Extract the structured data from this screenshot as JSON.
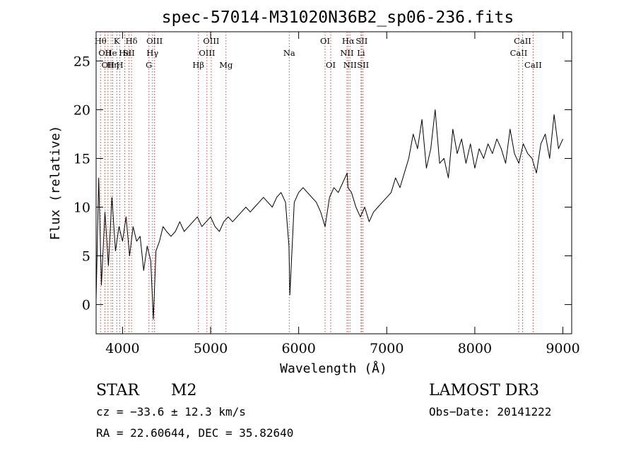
{
  "chart_data": {
    "type": "line",
    "title": "spec-57014-M31020N36B2_sp06-236.fits",
    "xlabel": "Wavelength (Å)",
    "ylabel": "Flux (relative)",
    "xlim": [
      3700,
      9100
    ],
    "ylim": [
      -3,
      28
    ],
    "xticks": [
      4000,
      5000,
      6000,
      7000,
      8000,
      9000
    ],
    "yticks": [
      0,
      5,
      10,
      15,
      20,
      25
    ],
    "grid": false,
    "series": [
      {
        "color": "#000000",
        "x": [
          3700,
          3730,
          3760,
          3800,
          3840,
          3880,
          3920,
          3960,
          4000,
          4040,
          4080,
          4120,
          4160,
          4200,
          4240,
          4280,
          4320,
          4350,
          4380,
          4420,
          4460,
          4500,
          4550,
          4600,
          4650,
          4700,
          4750,
          4800,
          4850,
          4900,
          4950,
          5000,
          5050,
          5100,
          5150,
          5200,
          5250,
          5300,
          5350,
          5400,
          5450,
          5500,
          5550,
          5600,
          5650,
          5700,
          5750,
          5800,
          5850,
          5890,
          5900,
          5950,
          6000,
          6050,
          6100,
          6150,
          6200,
          6250,
          6300,
          6350,
          6400,
          6450,
          6500,
          6550,
          6560,
          6600,
          6650,
          6700,
          6750,
          6800,
          6850,
          6900,
          6950,
          7000,
          7050,
          7100,
          7150,
          7200,
          7250,
          7300,
          7350,
          7400,
          7450,
          7500,
          7550,
          7600,
          7650,
          7700,
          7750,
          7800,
          7850,
          7900,
          7950,
          8000,
          8050,
          8100,
          8150,
          8200,
          8250,
          8300,
          8350,
          8400,
          8450,
          8500,
          8550,
          8600,
          8650,
          8700,
          8750,
          8800,
          8850,
          8900,
          8950,
          9000
        ],
        "y": [
          0.5,
          13.0,
          2.0,
          9.5,
          4.0,
          11.0,
          5.5,
          8.0,
          6.5,
          9.0,
          5.0,
          8.0,
          6.5,
          7.0,
          3.5,
          6.0,
          4.5,
          -1.5,
          5.5,
          6.5,
          8.0,
          7.5,
          7.0,
          7.5,
          8.5,
          7.5,
          8.0,
          8.5,
          9.0,
          8.0,
          8.5,
          9.0,
          8.0,
          7.5,
          8.5,
          9.0,
          8.5,
          9.0,
          9.5,
          10.0,
          9.5,
          10.0,
          10.5,
          11.0,
          10.5,
          10.0,
          11.0,
          11.5,
          10.5,
          6.0,
          1.0,
          10.5,
          11.5,
          12.0,
          11.5,
          11.0,
          10.5,
          9.5,
          8.0,
          11.0,
          12.0,
          11.5,
          12.5,
          13.5,
          12.0,
          11.5,
          10.0,
          9.0,
          10.0,
          8.5,
          9.5,
          10.0,
          10.5,
          11.0,
          11.5,
          13.0,
          12.0,
          13.5,
          15.0,
          17.5,
          16.0,
          19.0,
          14.0,
          16.0,
          20.0,
          14.5,
          15.0,
          13.0,
          18.0,
          15.5,
          17.0,
          14.5,
          16.5,
          14.0,
          16.0,
          15.0,
          16.5,
          15.5,
          17.0,
          16.0,
          14.5,
          18.0,
          15.5,
          14.5,
          16.5,
          15.5,
          15.0,
          13.5,
          16.5,
          17.5,
          15.0,
          19.5,
          16.0,
          17.0
        ]
      }
    ],
    "line_markers": [
      {
        "wave": 3750,
        "row": 1,
        "label": "Hθ"
      },
      {
        "wave": 3800,
        "row": 2,
        "label": "OII"
      },
      {
        "wave": 3835,
        "row": 3,
        "label": "OII"
      },
      {
        "wave": 3869,
        "row": 2,
        "label": "He"
      },
      {
        "wave": 3889,
        "row": 3,
        "label": "Hη"
      },
      {
        "wave": 3934,
        "row": 1,
        "label": "K"
      },
      {
        "wave": 3969,
        "row": 3,
        "label": "H"
      },
      {
        "wave": 4026,
        "row": 2,
        "label": "He"
      },
      {
        "wave": 4072,
        "row": 2,
        "label": "SII"
      },
      {
        "wave": 4102,
        "row": 1,
        "label": "Hδ"
      },
      {
        "wave": 4300,
        "row": 3,
        "label": "G"
      },
      {
        "wave": 4340,
        "row": 2,
        "label": "Hγ"
      },
      {
        "wave": 4363,
        "row": 1,
        "label": "OIII"
      },
      {
        "wave": 4861,
        "row": 3,
        "label": "Hβ"
      },
      {
        "wave": 4959,
        "row": 2,
        "label": "OIII"
      },
      {
        "wave": 5007,
        "row": 1,
        "label": "OIII"
      },
      {
        "wave": 5175,
        "row": 3,
        "label": "Mg"
      },
      {
        "wave": 5893,
        "row": 2,
        "label": "Na"
      },
      {
        "wave": 6300,
        "row": 1,
        "label": "OI"
      },
      {
        "wave": 6364,
        "row": 3,
        "label": "OI"
      },
      {
        "wave": 6548,
        "row": 2,
        "label": "NII"
      },
      {
        "wave": 6563,
        "row": 1,
        "label": "Hα"
      },
      {
        "wave": 6583,
        "row": 3,
        "label": "NII"
      },
      {
        "wave": 6708,
        "row": 2,
        "label": "Li"
      },
      {
        "wave": 6716,
        "row": 1,
        "label": "SII"
      },
      {
        "wave": 6731,
        "row": 3,
        "label": "SII"
      },
      {
        "wave": 8498,
        "row": 2,
        "label": "CaII"
      },
      {
        "wave": 8542,
        "row": 1,
        "label": "CaII"
      },
      {
        "wave": 8662,
        "row": 3,
        "label": "CaII"
      }
    ]
  },
  "info": {
    "object_class": "STAR",
    "subclass": "M2",
    "survey": "LAMOST DR3",
    "redshift": "cz = −33.6 ± 12.3 km/s",
    "obs_date": "Obs−Date: 20141222",
    "coords": "RA =  22.60644, DEC =  35.82640"
  }
}
